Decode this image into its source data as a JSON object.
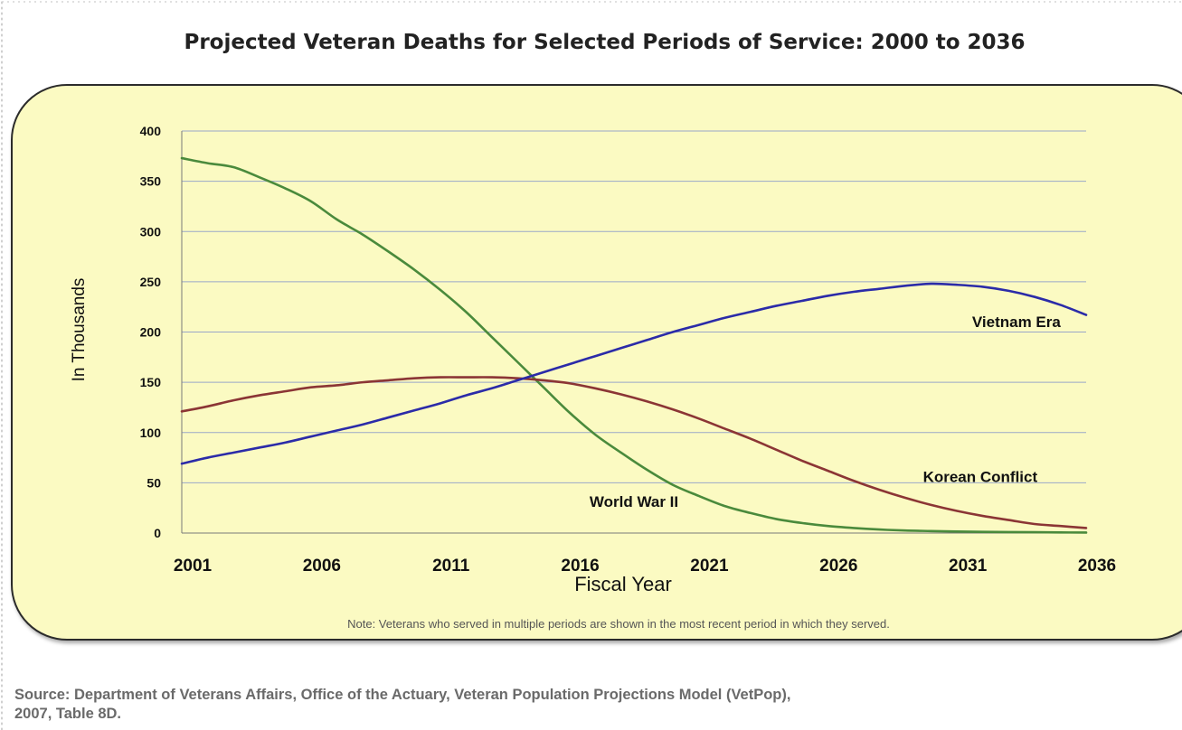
{
  "page": {
    "title": "Projected Veteran Deaths for Selected Periods of Service: 2000 to 2036",
    "note": "Note: Veterans who served in multiple periods are shown in the most recent period in which they served.",
    "source_line1": "Source: Department of Veterans Affairs, Office of the Actuary, Veteran Population Projections Model (VetPop),",
    "source_line2": "2007, Table 8D."
  },
  "chart_data": {
    "type": "line",
    "title": "Projected Veteran Deaths for Selected Periods of Service: 2000 to 2036",
    "xlabel": "Fiscal Year",
    "ylabel": "In Thousands",
    "xlim": [
      2001,
      2036
    ],
    "ylim": [
      0,
      400
    ],
    "x_ticks": [
      2001,
      2006,
      2011,
      2016,
      2021,
      2026,
      2031,
      2036
    ],
    "y_ticks": [
      0,
      50,
      100,
      150,
      200,
      250,
      300,
      350,
      400
    ],
    "grid": "horizontal",
    "legend": "inline labels",
    "series": [
      {
        "name": "World War II",
        "color": "#4a8a3c",
        "label_x": 2018.5,
        "label_y": 26,
        "x": [
          2001,
          2002,
          2003,
          2004,
          2005,
          2006,
          2007,
          2008,
          2009,
          2010,
          2011,
          2012,
          2013,
          2014,
          2015,
          2016,
          2017,
          2018,
          2019,
          2020,
          2021,
          2022,
          2023,
          2024,
          2025,
          2026,
          2027,
          2028,
          2029,
          2030,
          2031,
          2032,
          2033,
          2034,
          2035,
          2036
        ],
        "values": [
          373,
          368,
          364,
          354,
          343,
          330,
          312,
          297,
          280,
          262,
          242,
          220,
          195,
          170,
          145,
          120,
          98,
          80,
          63,
          48,
          37,
          27,
          20,
          14,
          10,
          7,
          5,
          3.5,
          2.5,
          2,
          1.5,
          1.2,
          1,
          0.8,
          0.6,
          0.5
        ]
      },
      {
        "name": "Korean Conflict",
        "color": "#8b3535",
        "label_x": 2031.9,
        "label_y": 51,
        "x": [
          2001,
          2002,
          2003,
          2004,
          2005,
          2006,
          2007,
          2008,
          2009,
          2010,
          2011,
          2012,
          2013,
          2014,
          2015,
          2016,
          2017,
          2018,
          2019,
          2020,
          2021,
          2022,
          2023,
          2024,
          2025,
          2026,
          2027,
          2028,
          2029,
          2030,
          2031,
          2032,
          2033,
          2034,
          2035,
          2036
        ],
        "values": [
          121,
          126,
          132,
          137,
          141,
          145,
          147,
          150,
          152,
          154,
          155,
          155,
          155,
          154,
          152,
          149,
          144,
          138,
          131,
          123,
          114,
          104,
          94,
          83,
          72,
          62,
          52,
          43,
          35,
          28,
          22,
          17,
          13,
          9,
          7,
          5
        ]
      },
      {
        "name": "Vietnam Era",
        "color": "#2b2ba8",
        "label_x": 2033.3,
        "label_y": 205,
        "x": [
          2001,
          2002,
          2003,
          2004,
          2005,
          2006,
          2007,
          2008,
          2009,
          2010,
          2011,
          2012,
          2013,
          2014,
          2015,
          2016,
          2017,
          2018,
          2019,
          2020,
          2021,
          2022,
          2023,
          2024,
          2025,
          2026,
          2027,
          2028,
          2029,
          2030,
          2031,
          2032,
          2033,
          2034,
          2035,
          2036
        ],
        "values": [
          69,
          75,
          80,
          85,
          90,
          96,
          102,
          108,
          115,
          122,
          129,
          137,
          144,
          152,
          160,
          168,
          176,
          184,
          192,
          200,
          207,
          214,
          220,
          226,
          231,
          236,
          240,
          243,
          246,
          248,
          247,
          245,
          241,
          235,
          227,
          217
        ]
      }
    ]
  }
}
